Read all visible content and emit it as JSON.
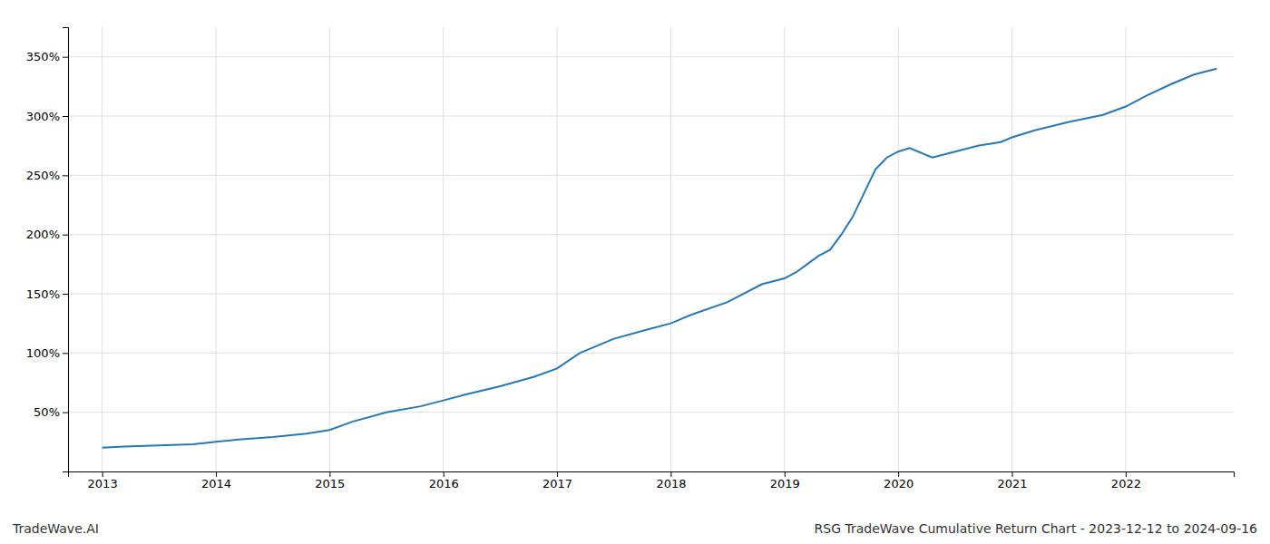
{
  "chart_data": {
    "type": "line",
    "x": [
      2013.0,
      2013.2,
      2013.5,
      2013.8,
      2014.0,
      2014.2,
      2014.5,
      2014.8,
      2015.0,
      2015.2,
      2015.5,
      2015.8,
      2016.0,
      2016.2,
      2016.5,
      2016.8,
      2017.0,
      2017.2,
      2017.5,
      2017.8,
      2018.0,
      2018.2,
      2018.5,
      2018.8,
      2019.0,
      2019.1,
      2019.2,
      2019.3,
      2019.4,
      2019.5,
      2019.6,
      2019.7,
      2019.8,
      2019.9,
      2020.0,
      2020.1,
      2020.3,
      2020.5,
      2020.7,
      2020.9,
      2021.0,
      2021.2,
      2021.5,
      2021.8,
      2022.0,
      2022.2,
      2022.4,
      2022.6,
      2022.8
    ],
    "values": [
      20,
      21,
      22,
      23,
      25,
      27,
      29,
      32,
      35,
      42,
      50,
      55,
      60,
      65,
      72,
      80,
      87,
      100,
      112,
      120,
      125,
      133,
      143,
      158,
      163,
      168,
      175,
      182,
      187,
      200,
      215,
      235,
      255,
      265,
      270,
      273,
      265,
      270,
      275,
      278,
      282,
      288,
      295,
      301,
      308,
      318,
      327,
      335,
      340
    ],
    "color": "#2878b5",
    "xlim": [
      2012.7,
      2022.95
    ],
    "xticks": [
      2013,
      2014,
      2015,
      2016,
      2017,
      2018,
      2019,
      2020,
      2021,
      2022
    ],
    "ylim": [
      0,
      375
    ],
    "yticks": [
      {
        "value": 50,
        "label": "50%"
      },
      {
        "value": 100,
        "label": "100%"
      },
      {
        "value": 150,
        "label": "150%"
      },
      {
        "value": 200,
        "label": "200%"
      },
      {
        "value": 250,
        "label": "250%"
      },
      {
        "value": 300,
        "label": "300%"
      },
      {
        "value": 350,
        "label": "350%"
      }
    ],
    "grid": true,
    "annotations": [
      "TradeWave.AI",
      "RSG TradeWave Cumulative Return Chart - 2023-12-12 to 2024-09-16"
    ]
  }
}
